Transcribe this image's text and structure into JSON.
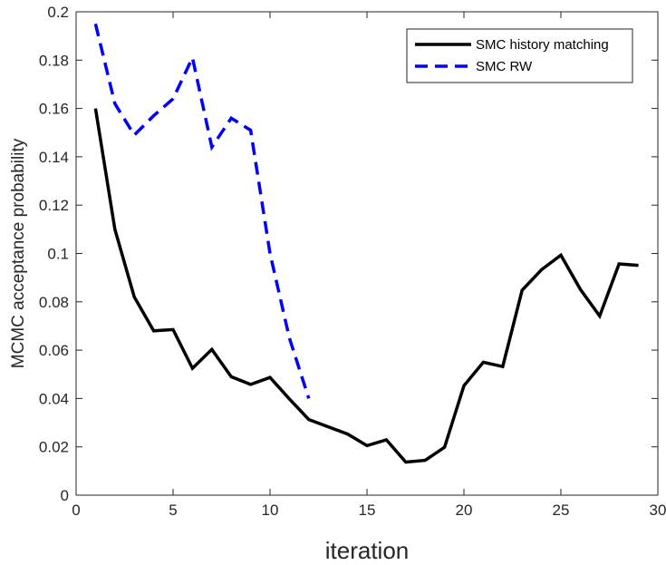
{
  "chart_data": {
    "type": "line",
    "title": "",
    "xlabel": "iteration",
    "ylabel": "MCMC acceptance probability",
    "xlim": [
      0,
      30
    ],
    "ylim": [
      0,
      0.2
    ],
    "xticks": [
      0,
      5,
      10,
      15,
      20,
      25,
      30
    ],
    "xtick_labels": [
      "0",
      "5",
      "10",
      "15",
      "20",
      "25",
      "30"
    ],
    "yticks": [
      0,
      0.02,
      0.04,
      0.06,
      0.08,
      0.1,
      0.12,
      0.14,
      0.16,
      0.18,
      0.2
    ],
    "ytick_labels": [
      "0",
      "0.02",
      "0.04",
      "0.06",
      "0.08",
      "0.1",
      "0.12",
      "0.14",
      "0.16",
      "0.18",
      "0.2"
    ],
    "grid": false,
    "legend_position": "top-right",
    "series": [
      {
        "name": "SMC history matching",
        "color": "#000000",
        "style": "solid",
        "x": [
          1,
          2,
          3,
          4,
          5,
          6,
          7,
          8,
          9,
          10,
          11,
          12,
          13,
          14,
          15,
          16,
          17,
          18,
          19,
          20,
          21,
          22,
          23,
          24,
          25,
          26,
          27,
          28,
          29
        ],
        "y": [
          0.16,
          0.11,
          0.082,
          0.068,
          0.0685,
          0.0525,
          0.0603,
          0.049,
          0.0458,
          0.0487,
          0.0398,
          0.0313,
          0.0283,
          0.0253,
          0.0205,
          0.0229,
          0.0137,
          0.0144,
          0.0198,
          0.0453,
          0.055,
          0.0532,
          0.0848,
          0.0933,
          0.0993,
          0.0852,
          0.0741,
          0.0957,
          0.0951
        ]
      },
      {
        "name": "SMC RW",
        "color": "#0000ff",
        "style": "dashed",
        "x": [
          1,
          2,
          3,
          4,
          5,
          6,
          7,
          8,
          9,
          10,
          11,
          12
        ],
        "y": [
          0.195,
          0.162,
          0.149,
          0.157,
          0.164,
          0.181,
          0.144,
          0.156,
          0.151,
          0.1,
          0.065,
          0.04
        ]
      }
    ]
  }
}
